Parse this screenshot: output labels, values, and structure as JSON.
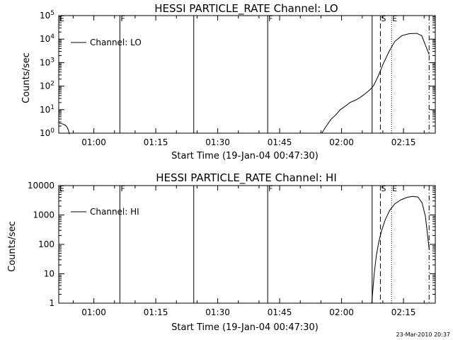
{
  "chart_data": [
    {
      "type": "line",
      "title": "HESSI PARTICLE_RATE Channel: LO",
      "xlabel": "Start Time (19-Jan-04 00:47:30)",
      "ylabel": "Counts/sec",
      "yscale": "log",
      "ylim": [
        1,
        100000
      ],
      "xlim_minutes_of_day": [
        51.5,
        142.7
      ],
      "x_tick_labels": [
        "01:00",
        "01:15",
        "01:30",
        "01:45",
        "02:00",
        "02:15"
      ],
      "x_tick_minutes": [
        60,
        75,
        90,
        105,
        120,
        135
      ],
      "y_tick_labels": [
        "10^0",
        "10^1",
        "10^2",
        "10^3",
        "10^4",
        "10^5"
      ],
      "y_tick_values": [
        1,
        10,
        100,
        1000,
        10000,
        100000
      ],
      "legend": {
        "label": "Channel: LO",
        "placement": "top-left"
      },
      "markers": [
        {
          "label": "E",
          "style": "solid",
          "minute": 51.5
        },
        {
          "label": "F",
          "style": "solid",
          "minute": 66.3
        },
        {
          "label": "",
          "style": "solid",
          "minute": 84.2
        },
        {
          "label": "F",
          "style": "solid",
          "minute": 102.1
        },
        {
          "label": "",
          "style": "solid",
          "minute": 127.4
        },
        {
          "label": "S",
          "style": "dashed",
          "minute": 129.4
        },
        {
          "label": "E",
          "style": "dotted",
          "minute": 132.1
        },
        {
          "label": "",
          "style": "dashdot",
          "minute": 141.2
        }
      ],
      "series": [
        {
          "x_minutes": [
            51.5,
            52.3,
            53.1,
            53.6,
            53.9,
            54.1
          ],
          "y": [
            2.7,
            2.5,
            2.2,
            1.7,
            1.2,
            0.9
          ]
        },
        {
          "x_minutes": [
            115.2,
            116.3,
            117.5,
            118.6,
            119.7,
            120.9,
            122.0,
            123.5,
            124.8,
            126.0,
            127.2,
            127.8,
            128.8,
            130.1,
            131.5,
            132.9,
            134.6,
            136.4,
            138.2,
            139.4,
            140.4,
            141.2
          ],
          "y": [
            1.0,
            2.0,
            4.0,
            6.0,
            10.0,
            14.0,
            20.0,
            26.0,
            36.0,
            52.0,
            80.0,
            110.0,
            250.0,
            900.0,
            3000.0,
            8000.0,
            14000.0,
            17000.0,
            17500.0,
            14000.0,
            5000.0,
            2200.0
          ]
        }
      ]
    },
    {
      "type": "line",
      "title": "HESSI PARTICLE_RATE Channel: HI",
      "xlabel": "Start Time (19-Jan-04 00:47:30)",
      "ylabel": "Counts/sec",
      "yscale": "log",
      "ylim": [
        1,
        10000
      ],
      "xlim_minutes_of_day": [
        51.5,
        142.7
      ],
      "x_tick_labels": [
        "01:00",
        "01:15",
        "01:30",
        "01:45",
        "02:00",
        "02:15"
      ],
      "x_tick_minutes": [
        60,
        75,
        90,
        105,
        120,
        135
      ],
      "y_tick_labels": [
        "1",
        "10",
        "100",
        "1000",
        "10000"
      ],
      "y_tick_values": [
        1,
        10,
        100,
        1000,
        10000
      ],
      "legend": {
        "label": "Channel: HI",
        "placement": "top-left"
      },
      "markers": [
        {
          "label": "E",
          "style": "solid",
          "minute": 51.5
        },
        {
          "label": "F",
          "style": "solid",
          "minute": 66.3
        },
        {
          "label": "",
          "style": "solid",
          "minute": 84.2
        },
        {
          "label": "F",
          "style": "solid",
          "minute": 102.1
        },
        {
          "label": "",
          "style": "solid",
          "minute": 127.4
        },
        {
          "label": "S",
          "style": "dashed",
          "minute": 129.4
        },
        {
          "label": "E",
          "style": "dotted",
          "minute": 132.1
        },
        {
          "label": "",
          "style": "dashdot",
          "minute": 141.2
        }
      ],
      "series": [
        {
          "x_minutes": [
            127.3,
            127.6,
            127.9,
            128.4,
            129.0,
            129.7,
            130.6,
            131.6,
            132.9,
            134.4,
            135.9,
            137.2,
            138.5,
            139.5,
            140.3,
            141.2
          ],
          "y": [
            1.0,
            3.0,
            10.0,
            40.0,
            120.0,
            300.0,
            700.0,
            1400.0,
            2400.0,
            3300.0,
            4000.0,
            4300.0,
            4100.0,
            2600.0,
            900.0,
            70.0
          ]
        }
      ]
    }
  ],
  "footer": {
    "timestamp": "23-Mar-2010 20:37"
  }
}
